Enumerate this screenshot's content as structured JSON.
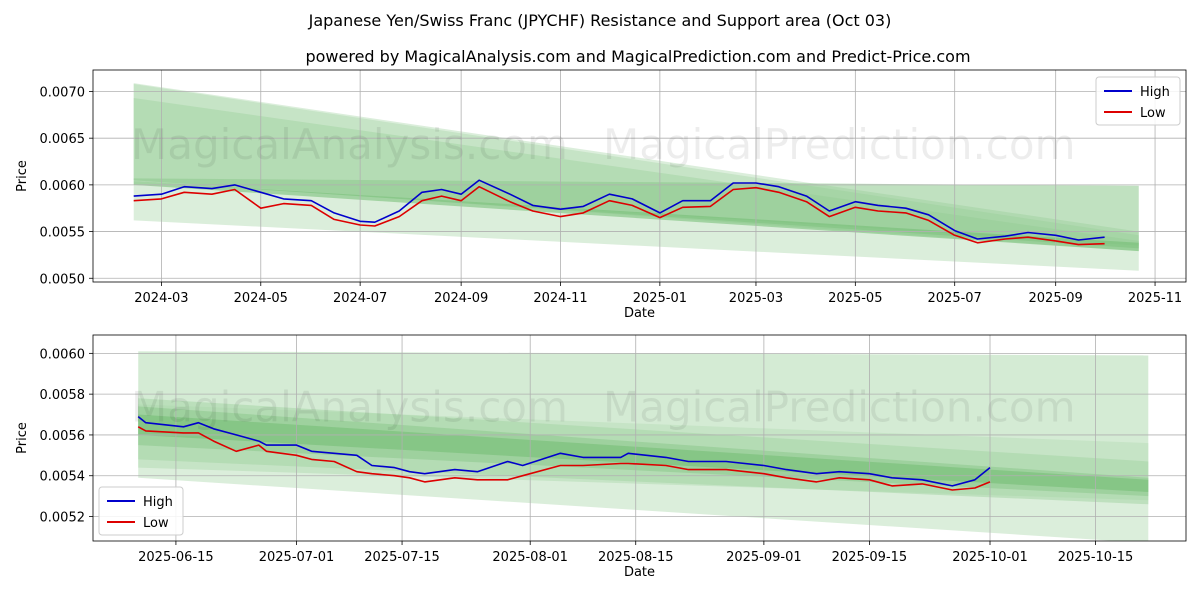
{
  "chart_data": [
    {
      "type": "line",
      "title": "Japanese Yen/Swiss Franc (JPYCHF) Resistance and Support area (Oct 03)",
      "subtitle": "powered by MagicalAnalysis.com and MagicalPrediction.com and Predict-Price.com",
      "xlabel": "Date",
      "ylabel": "Price",
      "x_ticks": [
        "2024-03",
        "2024-05",
        "2024-07",
        "2024-09",
        "2024-11",
        "2025-01",
        "2025-03",
        "2025-05",
        "2025-07",
        "2025-09",
        "2025-11"
      ],
      "y_ticks": [
        "0.0050",
        "0.0055",
        "0.0060",
        "0.0065",
        "0.0070"
      ],
      "ylim": [
        0.00496,
        0.00723
      ],
      "grid": true,
      "legend": "top-right",
      "watermarks": [
        "MagicalAnalysis.com",
        "MagicalPrediction.com"
      ],
      "bands": [
        {
          "x": [
            "2024-02-13",
            "2025-10-22"
          ],
          "upper": [
            0.00709,
            0.0055
          ],
          "lower": [
            0.00562,
            0.00508
          ]
        },
        {
          "x": [
            "2024-02-13",
            "2025-10-22"
          ],
          "upper": [
            0.00708,
            0.00546
          ],
          "lower": [
            0.00605,
            0.00529
          ]
        },
        {
          "x": [
            "2024-02-13",
            "2025-10-22"
          ],
          "upper": [
            0.00693,
            0.0054
          ],
          "lower": [
            0.00605,
            0.00535
          ]
        },
        {
          "x": [
            "2024-02-13",
            "2025-10-22"
          ],
          "upper": [
            0.00607,
            0.00599
          ],
          "lower": [
            0.00604,
            0.00532
          ]
        },
        {
          "x": [
            "2024-02-13",
            "2025-10-22"
          ],
          "upper": [
            0.00604,
            0.00538
          ],
          "lower": [
            0.006,
            0.00529
          ]
        }
      ],
      "series": [
        {
          "name": "High",
          "color": "#0000cc",
          "x": [
            "2024-02-13",
            "2024-03-01",
            "2024-03-15",
            "2024-04-01",
            "2024-04-15",
            "2024-05-01",
            "2024-05-15",
            "2024-06-01",
            "2024-06-15",
            "2024-07-01",
            "2024-07-10",
            "2024-07-25",
            "2024-08-08",
            "2024-08-20",
            "2024-09-01",
            "2024-09-12",
            "2024-10-01",
            "2024-10-15",
            "2024-11-01",
            "2024-11-15",
            "2024-12-01",
            "2024-12-15",
            "2025-01-01",
            "2025-01-15",
            "2025-02-01",
            "2025-02-15",
            "2025-03-01",
            "2025-03-15",
            "2025-04-01",
            "2025-04-15",
            "2025-05-01",
            "2025-05-15",
            "2025-06-01",
            "2025-06-15",
            "2025-07-01",
            "2025-07-15",
            "2025-08-01",
            "2025-08-15",
            "2025-09-01",
            "2025-09-15",
            "2025-10-01"
          ],
          "values": [
            0.00588,
            0.0059,
            0.00598,
            0.00596,
            0.006,
            0.00592,
            0.00585,
            0.00583,
            0.0057,
            0.00561,
            0.0056,
            0.00572,
            0.00592,
            0.00595,
            0.0059,
            0.00605,
            0.0059,
            0.00578,
            0.00574,
            0.00577,
            0.0059,
            0.00585,
            0.0057,
            0.00583,
            0.00583,
            0.00602,
            0.00602,
            0.00598,
            0.00588,
            0.00572,
            0.00582,
            0.00578,
            0.00575,
            0.00568,
            0.00551,
            0.00542,
            0.00545,
            0.00549,
            0.00546,
            0.00541,
            0.00544
          ]
        },
        {
          "name": "Low",
          "color": "#dd0000",
          "x": [
            "2024-02-13",
            "2024-03-01",
            "2024-03-15",
            "2024-04-01",
            "2024-04-15",
            "2024-05-01",
            "2024-05-15",
            "2024-06-01",
            "2024-06-15",
            "2024-07-01",
            "2024-07-10",
            "2024-07-25",
            "2024-08-08",
            "2024-08-20",
            "2024-09-01",
            "2024-09-12",
            "2024-10-01",
            "2024-10-15",
            "2024-11-01",
            "2024-11-15",
            "2024-12-01",
            "2024-12-15",
            "2025-01-01",
            "2025-01-15",
            "2025-02-01",
            "2025-02-15",
            "2025-03-01",
            "2025-03-15",
            "2025-04-01",
            "2025-04-15",
            "2025-05-01",
            "2025-05-15",
            "2025-06-01",
            "2025-06-15",
            "2025-07-01",
            "2025-07-15",
            "2025-08-01",
            "2025-08-15",
            "2025-09-01",
            "2025-09-15",
            "2025-10-01"
          ],
          "values": [
            0.00583,
            0.00585,
            0.00592,
            0.0059,
            0.00595,
            0.00575,
            0.0058,
            0.00578,
            0.00563,
            0.00557,
            0.00556,
            0.00566,
            0.00583,
            0.00588,
            0.00583,
            0.00598,
            0.00582,
            0.00572,
            0.00566,
            0.0057,
            0.00583,
            0.00578,
            0.00565,
            0.00576,
            0.00577,
            0.00595,
            0.00597,
            0.00592,
            0.00582,
            0.00566,
            0.00576,
            0.00572,
            0.0057,
            0.00562,
            0.00546,
            0.00538,
            0.00542,
            0.00544,
            0.0054,
            0.00536,
            0.00537
          ]
        }
      ]
    },
    {
      "type": "line",
      "title": "",
      "xlabel": "Date",
      "ylabel": "Price",
      "x_ticks": [
        "2025-06-15",
        "2025-07-01",
        "2025-07-15",
        "2025-08-01",
        "2025-08-15",
        "2025-09-01",
        "2025-09-15",
        "2025-10-01",
        "2025-10-15"
      ],
      "y_ticks": [
        "0.0052",
        "0.0054",
        "0.0056",
        "0.0058",
        "0.0060"
      ],
      "ylim": [
        0.00508,
        0.00609
      ],
      "grid": true,
      "legend": "bottom-left",
      "watermarks": [
        "MagicalAnalysis.com",
        "MagicalPrediction.com"
      ],
      "bands": [
        {
          "x": [
            "2025-06-10",
            "2025-10-22"
          ],
          "upper": [
            0.00575,
            0.00556
          ],
          "lower": [
            0.00539,
            0.00507
          ]
        },
        {
          "x": [
            "2025-06-10",
            "2025-10-22"
          ],
          "upper": [
            0.00601,
            0.00599
          ],
          "lower": [
            0.00544,
            0.00528
          ]
        },
        {
          "x": [
            "2025-06-10",
            "2025-10-22"
          ],
          "upper": [
            0.00578,
            0.00547
          ],
          "lower": [
            0.00548,
            0.00526
          ]
        },
        {
          "x": [
            "2025-06-10",
            "2025-10-22"
          ],
          "upper": [
            0.00574,
            0.00539
          ],
          "lower": [
            0.00555,
            0.0053
          ]
        },
        {
          "x": [
            "2025-06-10",
            "2025-10-22"
          ],
          "upper": [
            0.0057,
            0.00538
          ],
          "lower": [
            0.0056,
            0.00532
          ]
        }
      ],
      "series": [
        {
          "name": "High",
          "color": "#0000cc",
          "x": [
            "2025-06-10",
            "2025-06-11",
            "2025-06-16",
            "2025-06-18",
            "2025-06-20",
            "2025-06-23",
            "2025-06-26",
            "2025-06-27",
            "2025-07-01",
            "2025-07-03",
            "2025-07-06",
            "2025-07-09",
            "2025-07-11",
            "2025-07-14",
            "2025-07-16",
            "2025-07-18",
            "2025-07-22",
            "2025-07-25",
            "2025-07-29",
            "2025-07-31",
            "2025-08-05",
            "2025-08-08",
            "2025-08-13",
            "2025-08-14",
            "2025-08-19",
            "2025-08-22",
            "2025-08-27",
            "2025-09-01",
            "2025-09-04",
            "2025-09-08",
            "2025-09-11",
            "2025-09-15",
            "2025-09-18",
            "2025-09-22",
            "2025-09-26",
            "2025-09-29",
            "2025-10-01"
          ],
          "values": [
            0.00569,
            0.00566,
            0.00564,
            0.00566,
            0.00563,
            0.0056,
            0.00557,
            0.00555,
            0.00555,
            0.00552,
            0.00551,
            0.0055,
            0.00545,
            0.00544,
            0.00542,
            0.00541,
            0.00543,
            0.00542,
            0.00547,
            0.00545,
            0.00551,
            0.00549,
            0.00549,
            0.00551,
            0.00549,
            0.00547,
            0.00547,
            0.00545,
            0.00543,
            0.00541,
            0.00542,
            0.00541,
            0.00539,
            0.00538,
            0.00535,
            0.00538,
            0.00544
          ]
        },
        {
          "name": "Low",
          "color": "#dd0000",
          "x": [
            "2025-06-10",
            "2025-06-11",
            "2025-06-16",
            "2025-06-18",
            "2025-06-20",
            "2025-06-23",
            "2025-06-26",
            "2025-06-27",
            "2025-07-01",
            "2025-07-03",
            "2025-07-06",
            "2025-07-09",
            "2025-07-11",
            "2025-07-14",
            "2025-07-16",
            "2025-07-18",
            "2025-07-22",
            "2025-07-25",
            "2025-07-29",
            "2025-07-31",
            "2025-08-05",
            "2025-08-08",
            "2025-08-13",
            "2025-08-14",
            "2025-08-19",
            "2025-08-22",
            "2025-08-27",
            "2025-09-01",
            "2025-09-04",
            "2025-09-08",
            "2025-09-11",
            "2025-09-15",
            "2025-09-18",
            "2025-09-22",
            "2025-09-26",
            "2025-09-29",
            "2025-10-01"
          ],
          "values": [
            0.00564,
            0.00562,
            0.00561,
            0.00561,
            0.00557,
            0.00552,
            0.00555,
            0.00552,
            0.0055,
            0.00548,
            0.00547,
            0.00542,
            0.00541,
            0.0054,
            0.00539,
            0.00537,
            0.00539,
            0.00538,
            0.00538,
            0.0054,
            0.00545,
            0.00545,
            0.00546,
            0.00546,
            0.00545,
            0.00543,
            0.00543,
            0.00541,
            0.00539,
            0.00537,
            0.00539,
            0.00538,
            0.00535,
            0.00536,
            0.00533,
            0.00534,
            0.00537
          ]
        }
      ]
    }
  ]
}
